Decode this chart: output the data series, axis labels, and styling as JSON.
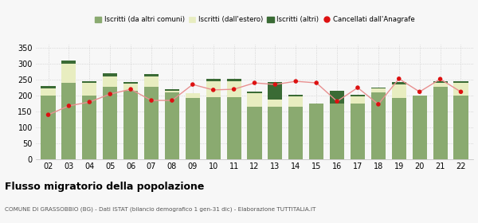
{
  "years": [
    "02",
    "03",
    "04",
    "05",
    "06",
    "07",
    "08",
    "09",
    "10",
    "11",
    "12",
    "13",
    "14",
    "15",
    "16",
    "17",
    "18",
    "19",
    "20",
    "21",
    "22"
  ],
  "iscritti_altri_comuni": [
    200,
    240,
    200,
    228,
    215,
    227,
    210,
    193,
    195,
    195,
    165,
    165,
    165,
    175,
    175,
    175,
    210,
    192,
    200,
    228,
    200
  ],
  "iscritti_estero": [
    22,
    60,
    40,
    32,
    22,
    33,
    5,
    15,
    50,
    50,
    42,
    22,
    33,
    0,
    0,
    22,
    12,
    42,
    0,
    12,
    40
  ],
  "iscritti_altri": [
    8,
    10,
    5,
    10,
    5,
    8,
    5,
    0,
    8,
    8,
    5,
    55,
    5,
    0,
    40,
    5,
    3,
    8,
    0,
    5,
    5
  ],
  "cancellati": [
    140,
    168,
    180,
    205,
    220,
    185,
    185,
    235,
    218,
    220,
    240,
    235,
    245,
    240,
    182,
    225,
    173,
    253,
    212,
    252,
    212
  ],
  "color_comuni": "#8aaa70",
  "color_estero": "#e8edc0",
  "color_altri": "#3a6b35",
  "color_cancellati": "#dd1111",
  "color_line": "#e89090",
  "ylim": [
    0,
    360
  ],
  "yticks": [
    0,
    50,
    100,
    150,
    200,
    250,
    300,
    350
  ],
  "title": "Flusso migratorio della popolazione",
  "subtitle": "COMUNE DI GRASSOBBIO (BG) - Dati ISTAT (bilancio demografico 1 gen-31 dic) - Elaborazione TUTTITALIA.IT",
  "legend_labels": [
    "Iscritti (da altri comuni)",
    "Iscritti (dall'estero)",
    "Iscritti (altri)",
    "Cancellati dall'Anagrafe"
  ],
  "bg_color": "#f7f7f7"
}
